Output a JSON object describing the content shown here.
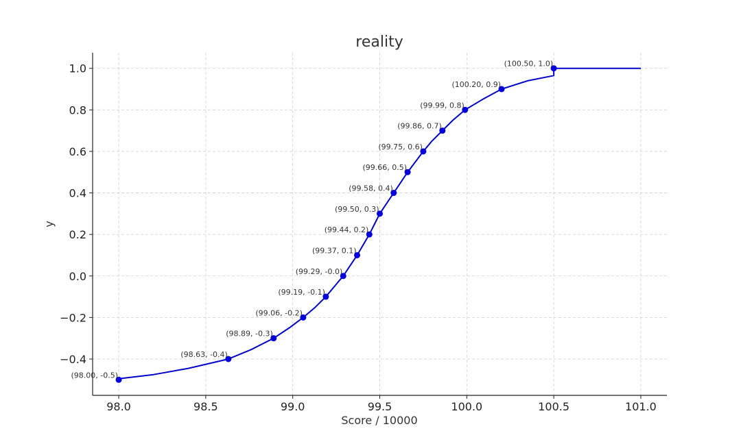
{
  "chart_data": {
    "type": "line",
    "title": "reality",
    "xlabel": "Score / 10000",
    "ylabel": "y",
    "xlim": [
      97.85,
      101.15
    ],
    "ylim": [
      -0.575,
      1.075
    ],
    "xticks": [
      98.0,
      98.5,
      99.0,
      99.5,
      100.0,
      100.5,
      101.0
    ],
    "xtick_labels": [
      "98.0",
      "98.5",
      "99.0",
      "99.5",
      "100.0",
      "100.5",
      "101.0"
    ],
    "yticks": [
      -0.4,
      -0.2,
      0.0,
      0.2,
      0.4,
      0.6,
      0.8,
      1.0
    ],
    "ytick_labels": [
      "−0.4",
      "−0.2",
      "0.0",
      "0.2",
      "0.4",
      "0.6",
      "0.8",
      "1.0"
    ],
    "grid": true,
    "line_color": "#0000cc",
    "marker_color": "#0000dd",
    "series": [
      {
        "points": [
          {
            "x": 98.0,
            "y": -0.5,
            "label": "(98.00, -0.5)"
          },
          {
            "x": 98.63,
            "y": -0.4,
            "label": "(98.63, -0.4)"
          },
          {
            "x": 98.89,
            "y": -0.3,
            "label": "(98.89, -0.3)"
          },
          {
            "x": 99.06,
            "y": -0.2,
            "label": "(99.06, -0.2)"
          },
          {
            "x": 99.19,
            "y": -0.1,
            "label": "(99.19, -0.1)"
          },
          {
            "x": 99.29,
            "y": 0.0,
            "label": "(99.29, -0.0)"
          },
          {
            "x": 99.37,
            "y": 0.1,
            "label": "(99.37, 0.1)"
          },
          {
            "x": 99.44,
            "y": 0.2,
            "label": "(99.44, 0.2)"
          },
          {
            "x": 99.5,
            "y": 0.3,
            "label": "(99.50, 0.3)"
          },
          {
            "x": 99.58,
            "y": 0.4,
            "label": "(99.58, 0.4)"
          },
          {
            "x": 99.66,
            "y": 0.5,
            "label": "(99.66, 0.5)"
          },
          {
            "x": 99.75,
            "y": 0.6,
            "label": "(99.75, 0.6)"
          },
          {
            "x": 99.86,
            "y": 0.7,
            "label": "(99.86, 0.7)"
          },
          {
            "x": 99.99,
            "y": 0.8,
            "label": "(99.99, 0.8)"
          },
          {
            "x": 100.2,
            "y": 0.9,
            "label": "(100.20, 0.9)"
          },
          {
            "x": 100.5,
            "y": 1.0,
            "label": "(100.50, 1.0)"
          }
        ],
        "curve": [
          [
            98.0,
            -0.495
          ],
          [
            98.2,
            -0.475
          ],
          [
            98.4,
            -0.445
          ],
          [
            98.63,
            -0.4
          ],
          [
            98.76,
            -0.355
          ],
          [
            98.89,
            -0.3
          ],
          [
            98.98,
            -0.25
          ],
          [
            99.06,
            -0.2
          ],
          [
            99.13,
            -0.15
          ],
          [
            99.19,
            -0.1
          ],
          [
            99.24,
            -0.05
          ],
          [
            99.29,
            0.0
          ],
          [
            99.33,
            0.05
          ],
          [
            99.37,
            0.1
          ],
          [
            99.405,
            0.15
          ],
          [
            99.44,
            0.2
          ],
          [
            99.47,
            0.25
          ],
          [
            99.5,
            0.3
          ],
          [
            99.54,
            0.35
          ],
          [
            99.58,
            0.4
          ],
          [
            99.62,
            0.45
          ],
          [
            99.66,
            0.5
          ],
          [
            99.705,
            0.55
          ],
          [
            99.75,
            0.6
          ],
          [
            99.8,
            0.65
          ],
          [
            99.86,
            0.7
          ],
          [
            99.92,
            0.75
          ],
          [
            99.99,
            0.8
          ],
          [
            100.09,
            0.85
          ],
          [
            100.2,
            0.9
          ],
          [
            100.35,
            0.94
          ],
          [
            100.5,
            0.965
          ],
          [
            100.5,
            1.0
          ],
          [
            101.0,
            1.0
          ]
        ]
      }
    ]
  }
}
